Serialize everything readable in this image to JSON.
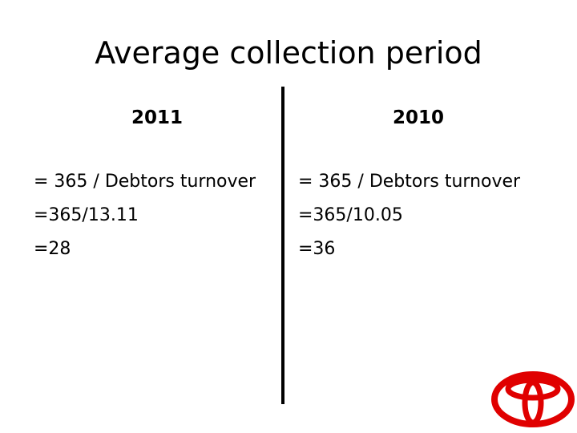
{
  "title": "Average collection period",
  "columns": [
    {
      "heading": "2011",
      "lines": [
        "= 365 / Debtors turnover",
        "=365/13.11",
        "=28"
      ]
    },
    {
      "heading": "2010",
      "lines": [
        "= 365 / Debtors turnover",
        "=365/10.05",
        "=36"
      ]
    }
  ]
}
